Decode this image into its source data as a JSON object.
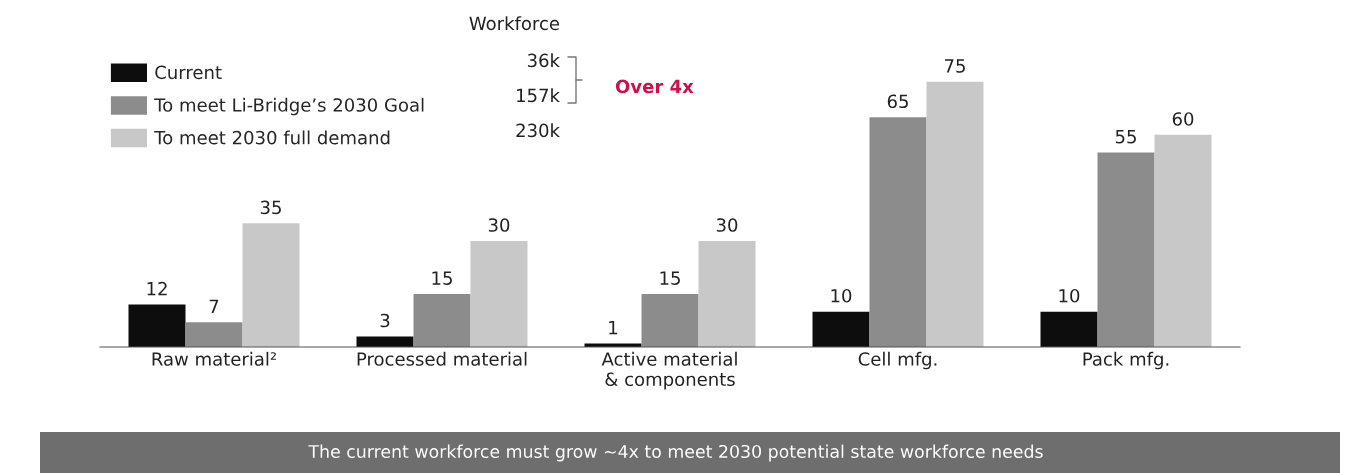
{
  "chart_data": {
    "type": "bar",
    "categories": [
      "Raw material²",
      "Processed material",
      "Active material\n& components",
      "Cell mfg.",
      "Pack mfg."
    ],
    "series": [
      {
        "name": "Current",
        "color": "#0d0d0d",
        "values": [
          12,
          3,
          1,
          10,
          10
        ]
      },
      {
        "name": "To meet Li-Bridge’s 2030 Goal",
        "color": "#8c8c8c",
        "values": [
          7,
          15,
          15,
          65,
          55
        ]
      },
      {
        "name": "To meet 2030 full demand",
        "color": "#c8c8c8",
        "values": [
          35,
          30,
          30,
          75,
          60
        ]
      }
    ],
    "data_labels": true,
    "legend": "top left",
    "grid": false,
    "tick_labels": "x",
    "annotations": [
      "Workforce",
      "36k",
      "157k",
      "230k",
      "Over 4x",
      "The current workforce must grow ~4x to meet 2030 potential state workforce needs"
    ]
  }
}
